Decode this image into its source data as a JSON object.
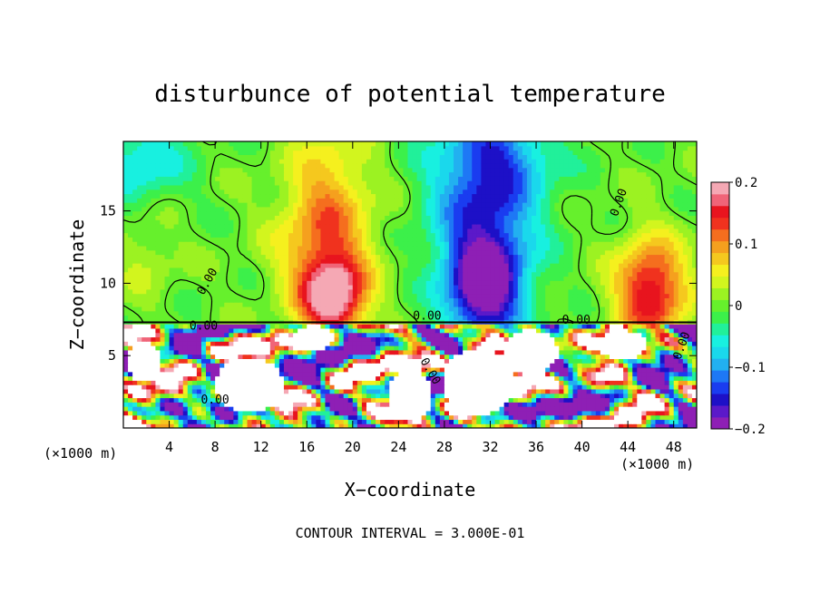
{
  "chart_data": {
    "type": "heatmap",
    "title": "disturbunce of potential temperature",
    "xlabel": "X−coordinate",
    "ylabel": "Z−coordinate",
    "x_unit_left": "(×1000 m)",
    "x_unit_right": "(×1000 m)",
    "footer": "CONTOUR INTERVAL = 3.000E-01",
    "xlim": [
      0,
      50
    ],
    "ylim": [
      0,
      19.8
    ],
    "x_ticks": [
      {
        "value": 4,
        "label": "4"
      },
      {
        "value": 8,
        "label": "8"
      },
      {
        "value": 12,
        "label": "12"
      },
      {
        "value": 16,
        "label": "16"
      },
      {
        "value": 20,
        "label": "20"
      },
      {
        "value": 24,
        "label": "24"
      },
      {
        "value": 28,
        "label": "28"
      },
      {
        "value": 32,
        "label": "32"
      },
      {
        "value": 36,
        "label": "36"
      },
      {
        "value": 40,
        "label": "40"
      },
      {
        "value": 44,
        "label": "44"
      },
      {
        "value": 48,
        "label": "48"
      }
    ],
    "y_ticks": [
      {
        "value": 5,
        "label": "5"
      },
      {
        "value": 10,
        "label": "10"
      },
      {
        "value": 15,
        "label": "15"
      }
    ],
    "grid": false,
    "colorbar": {
      "range": [
        -0.2,
        0.2
      ],
      "ticks": [
        {
          "value": 0.2,
          "label": "0.2"
        },
        {
          "value": 0.1,
          "label": "0.1"
        },
        {
          "value": 0,
          "label": "0"
        },
        {
          "value": -0.1,
          "label": "−0.1"
        },
        {
          "value": -0.2,
          "label": "−0.2"
        }
      ],
      "colors": [
        "#8e1fb5",
        "#5b19c9",
        "#1d10c7",
        "#1a3cf0",
        "#1e78f5",
        "#22b0f0",
        "#1ad8ec",
        "#18f0e0",
        "#21f09a",
        "#3cf04a",
        "#66f02c",
        "#9cf222",
        "#d2f51e",
        "#f5f01e",
        "#f5c81e",
        "#f5a01e",
        "#f56e1e",
        "#f0321e",
        "#e8141e",
        "#f06478",
        "#f5a8b4"
      ]
    },
    "contour_labels": [
      "0.00",
      "0.00",
      "0.00",
      "0.00",
      "0.00",
      "0.00",
      "0.00",
      "0.00"
    ],
    "upper_field": {
      "z_range": [
        7.3,
        19.8
      ],
      "blobs": [
        {
          "x": 18.3,
          "z": 9.0,
          "sx": 2.7,
          "sz": 2.6,
          "a": 0.19
        },
        {
          "x": 17.5,
          "z": 12.5,
          "sx": 4.0,
          "sz": 4.5,
          "a": 0.1
        },
        {
          "x": 18.0,
          "z": 17.5,
          "sx": 3.5,
          "sz": 4.5,
          "a": 0.05
        },
        {
          "x": 46.0,
          "z": 9.5,
          "sx": 3.0,
          "sz": 3.5,
          "a": 0.17
        },
        {
          "x": 31.5,
          "z": 9.5,
          "sx": 3.2,
          "sz": 3.4,
          "a": -0.2
        },
        {
          "x": 31.5,
          "z": 14.5,
          "sx": 4.5,
          "sz": 5.0,
          "a": -0.13
        },
        {
          "x": 32.5,
          "z": 19.0,
          "sx": 5.0,
          "sz": 3.0,
          "a": -0.09
        },
        {
          "x": 1.5,
          "z": 18.5,
          "sx": 4.0,
          "sz": 3.0,
          "a": -0.07
        },
        {
          "x": 2.0,
          "z": 12.0,
          "sx": 2.5,
          "sz": 3.0,
          "a": 0.03
        }
      ]
    },
    "lower_field": {
      "z_range": [
        0,
        7.3
      ],
      "amplitude": 0.32,
      "white_regions": [
        {
          "x": 11.0,
          "z": 3.0,
          "rx": 3.0,
          "rz": 1.9
        },
        {
          "x": 31.0,
          "z": 3.2,
          "rx": 3.2,
          "rz": 2.3
        },
        {
          "x": 35.5,
          "z": 5.3,
          "rx": 2.4,
          "rz": 1.5
        },
        {
          "x": 25.0,
          "z": 2.2,
          "rx": 2.0,
          "rz": 1.7
        },
        {
          "x": 43.5,
          "z": 5.8,
          "rx": 2.2,
          "rz": 1.0
        },
        {
          "x": 1.8,
          "z": 4.6,
          "rx": 1.5,
          "rz": 1.4
        },
        {
          "x": 16.5,
          "z": 6.2,
          "rx": 1.8,
          "rz": 0.9
        }
      ]
    }
  }
}
